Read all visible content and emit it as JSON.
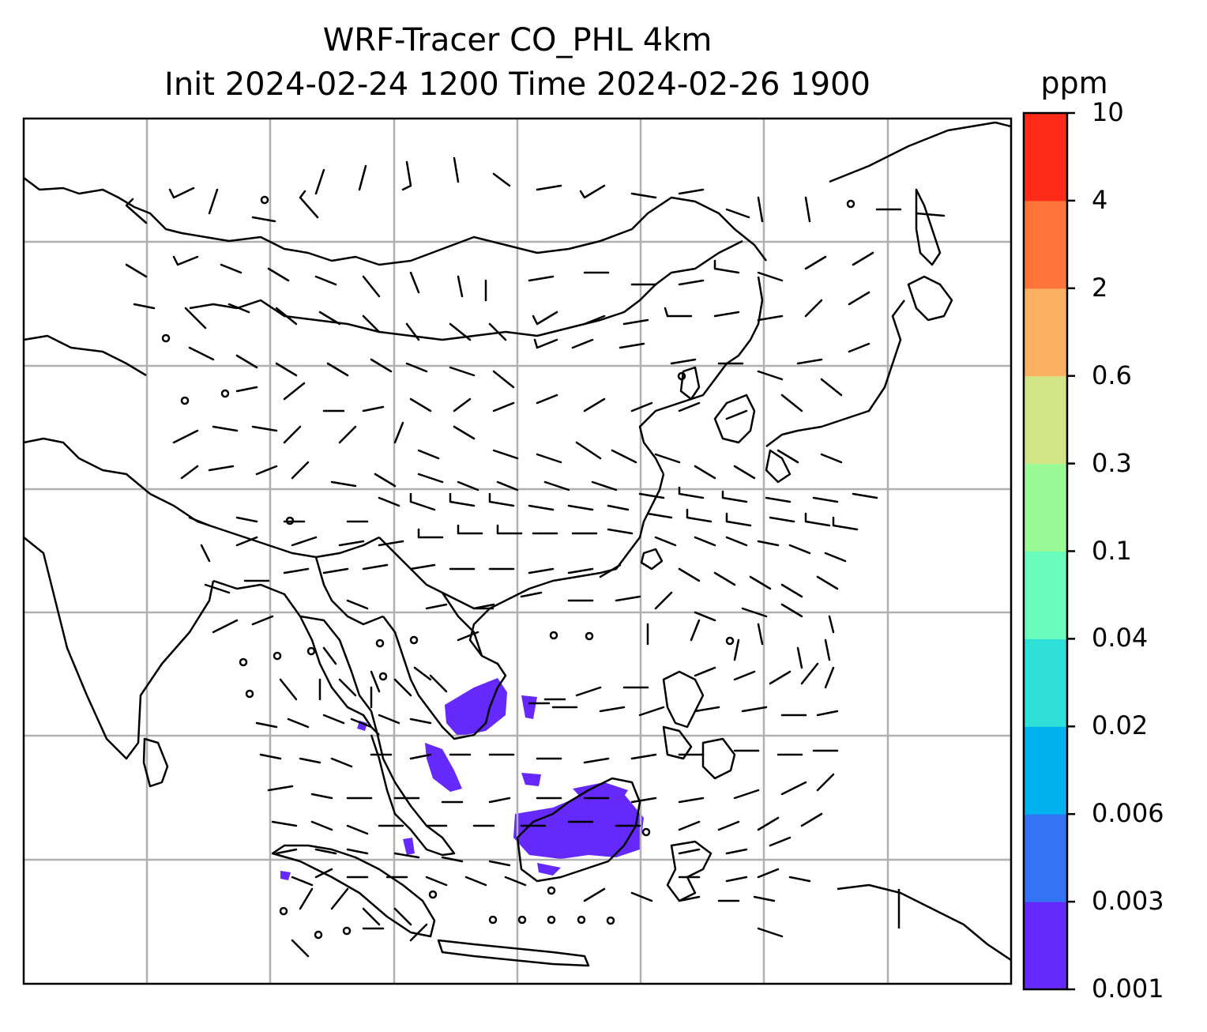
{
  "title_line1": "WRF-Tracer CO_PHL 4km",
  "title_line2": "Init 2024-02-24 1200 Time 2024-02-26 1900",
  "colorbar": {
    "unit": "ppm",
    "levels": [
      "0.001",
      "0.003",
      "0.006",
      "0.02",
      "0.04",
      "0.1",
      "0.3",
      "0.6",
      "2",
      "4",
      "10"
    ],
    "colors": [
      "#6629fb",
      "#3473f4",
      "#00b3ee",
      "#2fdfd8",
      "#69fcbd",
      "#9afa95",
      "#d1e486",
      "#fcb062",
      "#fd7439",
      "#fc2a17"
    ]
  },
  "map": {
    "grid": "on",
    "coastlines": "on",
    "wind_barbs": "on",
    "tracer_color_dominant": "#6629fb"
  }
}
